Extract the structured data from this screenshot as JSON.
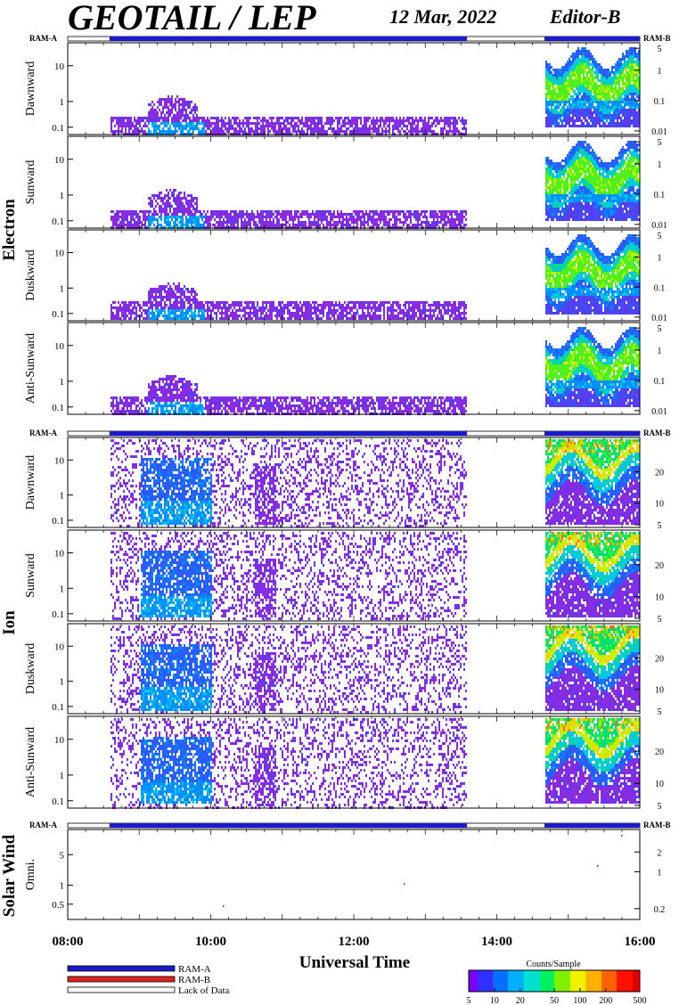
{
  "header": {
    "title": "GEOTAIL / LEP",
    "date": "12 Mar, 2022",
    "editor": "Editor-B"
  },
  "legend": {
    "ram_a": "RAM-A",
    "ram_b": "RAM-B",
    "lack": "Lack of Data"
  },
  "colorbar": {
    "title": "Counts/Sample",
    "ticks": [
      "5",
      "10",
      "20",
      "50",
      "100",
      "200",
      "500"
    ]
  },
  "xaxis": {
    "label": "Universal Time",
    "ticks": [
      "08:00",
      "10:00",
      "12:00",
      "14:00",
      "16:00"
    ]
  },
  "groups": {
    "electron": "Electron",
    "ion": "Ion",
    "solar_wind": "Solar Wind"
  },
  "panel_labels": {
    "e1": "Dawnward",
    "e2": "Sunward",
    "e3": "Duskward",
    "e4": "Anti-Sunward",
    "i1": "Dawnward",
    "i2": "Sunward",
    "i3": "Duskward",
    "i4": "Anti-Sunward",
    "sw": "Omni."
  },
  "mode_bar_label": {
    "left": "RAM-A",
    "right": "RAM-B"
  },
  "colors": {
    "ram_a": "#1a1acc",
    "ram_b": "#dd2020",
    "lack": "#ffffff"
  },
  "chart_data": {
    "type": "heatmap",
    "x_range": [
      "08:00",
      "16:00"
    ],
    "modes": [
      {
        "mode": "Lack of Data",
        "from": "08:00",
        "to": "08:35"
      },
      {
        "mode": "RAM-A",
        "from": "08:35",
        "to": "13:35"
      },
      {
        "mode": "Lack of Data",
        "from": "13:35",
        "to": "14:40"
      },
      {
        "mode": "RAM-A",
        "from": "14:40",
        "to": "16:00"
      }
    ],
    "panels": [
      {
        "group": "Electron",
        "name": "Dawnward",
        "left_ticks": [
          "10",
          "1",
          "0.1"
        ],
        "right_ticks": [
          "5",
          "1",
          "0.1",
          "0.01"
        ]
      },
      {
        "group": "Electron",
        "name": "Sunward",
        "left_ticks": [
          "10",
          "1",
          "0.1"
        ],
        "right_ticks": [
          "5",
          "1",
          "0.1",
          "0.01"
        ]
      },
      {
        "group": "Electron",
        "name": "Duskward",
        "left_ticks": [
          "10",
          "1",
          "0.1"
        ],
        "right_ticks": [
          "5",
          "1",
          "0.1",
          "0.01"
        ]
      },
      {
        "group": "Electron",
        "name": "Anti-Sunward",
        "left_ticks": [
          "10",
          "1",
          "0.1"
        ],
        "right_ticks": [
          "5",
          "1",
          "0.1",
          "0.01"
        ]
      },
      {
        "group": "Ion",
        "name": "Dawnward",
        "left_ticks": [
          "10",
          "1",
          "0.1"
        ],
        "right_ticks": [
          "20",
          "10",
          "5"
        ]
      },
      {
        "group": "Ion",
        "name": "Sunward",
        "left_ticks": [
          "10",
          "1",
          "0.1"
        ],
        "right_ticks": [
          "20",
          "10",
          "5"
        ]
      },
      {
        "group": "Ion",
        "name": "Duskward",
        "left_ticks": [
          "10",
          "1",
          "0.1"
        ],
        "right_ticks": [
          "20",
          "10",
          "5"
        ]
      },
      {
        "group": "Ion",
        "name": "Anti-Sunward",
        "left_ticks": [
          "10",
          "1",
          "0.1"
        ],
        "right_ticks": [
          "20",
          "10",
          "5"
        ]
      },
      {
        "group": "Solar Wind",
        "name": "Omni.",
        "left_ticks": [
          "5",
          "1",
          "0.5"
        ],
        "right_ticks": [
          "2",
          "1",
          "0.2"
        ]
      }
    ],
    "colorscale": {
      "label": "Counts/Sample",
      "min": 5,
      "max": 500,
      "scale": "log"
    }
  }
}
